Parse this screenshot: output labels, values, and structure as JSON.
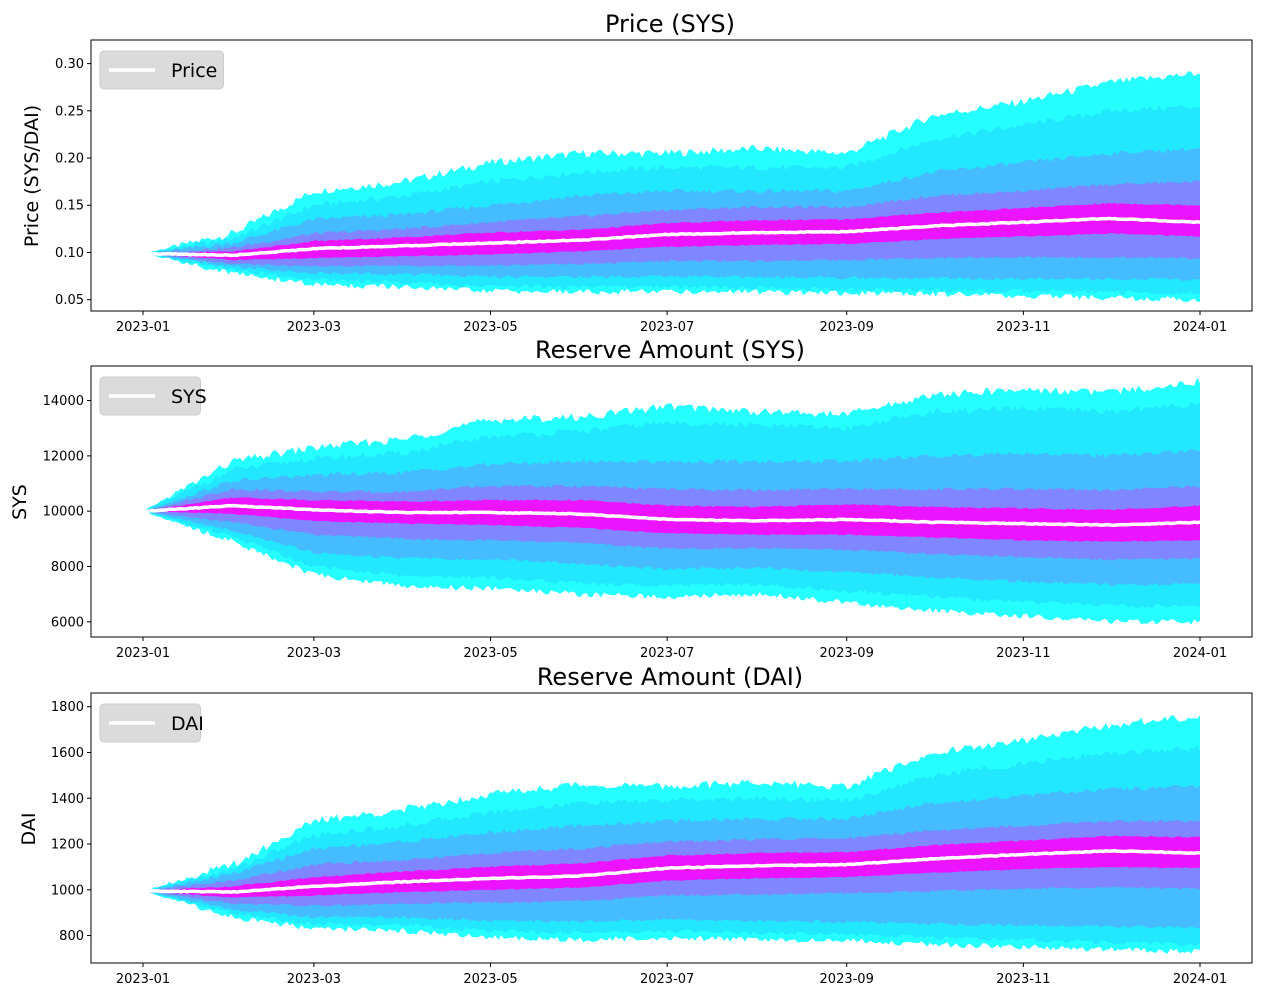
{
  "chart_data": [
    {
      "type": "area",
      "title": "Price (SYS)",
      "ylabel": "Price (SYS/DAI)",
      "xlabel": "",
      "ylim": [
        0.038,
        0.325
      ],
      "yticks": [
        0.05,
        0.1,
        0.15,
        0.2,
        0.25,
        0.3
      ],
      "ytick_labels": [
        "0.05",
        "0.10",
        "0.15",
        "0.20",
        "0.25",
        "0.30"
      ],
      "x_dates": [
        "2023-01-01",
        "2023-02-01",
        "2023-03-01",
        "2023-04-01",
        "2023-05-01",
        "2023-06-01",
        "2023-07-01",
        "2023-08-01",
        "2023-09-01",
        "2023-10-01",
        "2023-11-01",
        "2023-12-01",
        "2024-01-01"
      ],
      "legend": {
        "label": "Price",
        "location": "upper left"
      },
      "median": [
        0.099,
        0.097,
        0.104,
        0.107,
        0.11,
        0.113,
        0.119,
        0.121,
        0.122,
        0.128,
        0.132,
        0.136,
        0.132
      ],
      "bands": [
        {
          "lower": [
            0.099,
            0.078,
            0.066,
            0.063,
            0.059,
            0.058,
            0.059,
            0.058,
            0.057,
            0.056,
            0.054,
            0.052,
            0.05
          ],
          "upper": [
            0.099,
            0.12,
            0.165,
            0.175,
            0.195,
            0.205,
            0.205,
            0.21,
            0.205,
            0.245,
            0.26,
            0.28,
            0.29
          ]
        },
        {
          "lower": [
            0.099,
            0.081,
            0.071,
            0.068,
            0.064,
            0.063,
            0.064,
            0.062,
            0.061,
            0.06,
            0.059,
            0.058,
            0.056
          ],
          "upper": [
            0.099,
            0.115,
            0.15,
            0.16,
            0.175,
            0.185,
            0.19,
            0.19,
            0.19,
            0.22,
            0.235,
            0.25,
            0.255
          ]
        },
        {
          "lower": [
            0.099,
            0.085,
            0.078,
            0.077,
            0.074,
            0.074,
            0.075,
            0.074,
            0.073,
            0.073,
            0.072,
            0.072,
            0.071
          ],
          "upper": [
            0.099,
            0.11,
            0.135,
            0.14,
            0.15,
            0.16,
            0.165,
            0.165,
            0.165,
            0.185,
            0.195,
            0.205,
            0.21
          ]
        },
        {
          "lower": [
            0.099,
            0.088,
            0.085,
            0.086,
            0.086,
            0.088,
            0.091,
            0.091,
            0.092,
            0.094,
            0.095,
            0.095,
            0.094
          ],
          "upper": [
            0.099,
            0.105,
            0.12,
            0.125,
            0.132,
            0.138,
            0.145,
            0.148,
            0.148,
            0.16,
            0.165,
            0.172,
            0.175
          ]
        },
        {
          "lower": [
            0.099,
            0.092,
            0.094,
            0.096,
            0.098,
            0.101,
            0.106,
            0.108,
            0.109,
            0.114,
            0.117,
            0.12,
            0.117
          ],
          "upper": [
            0.099,
            0.101,
            0.112,
            0.116,
            0.121,
            0.124,
            0.131,
            0.134,
            0.135,
            0.142,
            0.147,
            0.152,
            0.15
          ]
        }
      ]
    },
    {
      "type": "area",
      "title": "Reserve Amount (SYS)",
      "ylabel": "SYS",
      "xlabel": "",
      "ylim": [
        5450,
        15250
      ],
      "yticks": [
        6000,
        8000,
        10000,
        12000,
        14000
      ],
      "ytick_labels": [
        "6000",
        "8000",
        "10000",
        "12000",
        "14000"
      ],
      "x_dates": [
        "2023-01-01",
        "2023-02-01",
        "2023-03-01",
        "2023-04-01",
        "2023-05-01",
        "2023-06-01",
        "2023-07-01",
        "2023-08-01",
        "2023-09-01",
        "2023-10-01",
        "2023-11-01",
        "2023-12-01",
        "2024-01-01"
      ],
      "legend": {
        "label": "SYS",
        "location": "upper left"
      },
      "median": [
        10000,
        10200,
        10050,
        9950,
        9950,
        9900,
        9700,
        9650,
        9700,
        9600,
        9550,
        9500,
        9600
      ],
      "bands": [
        {
          "lower": [
            10000,
            8900,
            7700,
            7300,
            7200,
            7000,
            6900,
            7000,
            6700,
            6400,
            6200,
            6000,
            6000
          ],
          "upper": [
            10000,
            11800,
            12300,
            12600,
            13300,
            13400,
            13800,
            13600,
            13500,
            14200,
            14400,
            14300,
            14700
          ]
        },
        {
          "lower": [
            10000,
            9050,
            8000,
            7650,
            7600,
            7400,
            7300,
            7350,
            7100,
            6900,
            6700,
            6600,
            6550
          ],
          "upper": [
            10000,
            11500,
            11900,
            12100,
            12700,
            12900,
            13200,
            13100,
            13000,
            13600,
            13700,
            13600,
            13900
          ]
        },
        {
          "lower": [
            10000,
            9300,
            8500,
            8300,
            8250,
            8100,
            7900,
            7950,
            7800,
            7600,
            7450,
            7350,
            7350
          ],
          "upper": [
            10000,
            11100,
            11300,
            11400,
            11700,
            11800,
            11800,
            11800,
            11800,
            12000,
            12100,
            12000,
            12200
          ]
        },
        {
          "lower": [
            10000,
            9600,
            9150,
            9000,
            8950,
            8850,
            8650,
            8650,
            8600,
            8450,
            8350,
            8250,
            8300
          ],
          "upper": [
            10000,
            10800,
            10700,
            10700,
            10900,
            10900,
            10800,
            10750,
            10800,
            10800,
            10800,
            10750,
            10900
          ]
        },
        {
          "lower": [
            10000,
            9900,
            9650,
            9550,
            9500,
            9400,
            9200,
            9150,
            9150,
            9050,
            8950,
            8900,
            8950
          ],
          "upper": [
            10000,
            10500,
            10400,
            10350,
            10400,
            10400,
            10200,
            10150,
            10250,
            10150,
            10100,
            10050,
            10200
          ]
        }
      ]
    },
    {
      "type": "area",
      "title": "Reserve Amount (DAI)",
      "ylabel": "DAI",
      "xlabel": "",
      "ylim": [
        680,
        1860
      ],
      "yticks": [
        800,
        1000,
        1200,
        1400,
        1600,
        1800
      ],
      "ytick_labels": [
        "800",
        "1000",
        "1200",
        "1400",
        "1600",
        "1800"
      ],
      "x_dates": [
        "2023-01-01",
        "2023-02-01",
        "2023-03-01",
        "2023-04-01",
        "2023-05-01",
        "2023-06-01",
        "2023-07-01",
        "2023-08-01",
        "2023-09-01",
        "2023-10-01",
        "2023-11-01",
        "2023-12-01",
        "2024-01-01"
      ],
      "legend": {
        "label": "DAI",
        "location": "upper left"
      },
      "median": [
        995,
        990,
        1015,
        1035,
        1050,
        1060,
        1095,
        1105,
        1110,
        1135,
        1155,
        1170,
        1160
      ],
      "bands": [
        {
          "lower": [
            995,
            880,
            830,
            820,
            790,
            780,
            790,
            780,
            780,
            760,
            750,
            740,
            730
          ],
          "upper": [
            995,
            1110,
            1300,
            1350,
            1420,
            1460,
            1450,
            1470,
            1450,
            1600,
            1650,
            1720,
            1760
          ]
        },
        {
          "lower": [
            995,
            895,
            850,
            845,
            820,
            810,
            820,
            810,
            805,
            790,
            780,
            770,
            760
          ],
          "upper": [
            995,
            1090,
            1240,
            1280,
            1340,
            1380,
            1390,
            1400,
            1390,
            1500,
            1550,
            1600,
            1620
          ]
        },
        {
          "lower": [
            995,
            915,
            880,
            880,
            865,
            860,
            870,
            865,
            860,
            850,
            845,
            840,
            835
          ],
          "upper": [
            995,
            1070,
            1180,
            1210,
            1250,
            1280,
            1300,
            1310,
            1310,
            1380,
            1410,
            1440,
            1450
          ]
        },
        {
          "lower": [
            995,
            940,
            930,
            940,
            945,
            950,
            975,
            980,
            985,
            995,
            1005,
            1010,
            1005
          ],
          "upper": [
            995,
            1040,
            1110,
            1130,
            1160,
            1180,
            1210,
            1220,
            1225,
            1260,
            1280,
            1300,
            1300
          ]
        },
        {
          "lower": [
            995,
            965,
            975,
            990,
            1000,
            1010,
            1040,
            1050,
            1055,
            1075,
            1090,
            1100,
            1095
          ],
          "upper": [
            995,
            1015,
            1055,
            1080,
            1100,
            1115,
            1150,
            1160,
            1165,
            1195,
            1215,
            1235,
            1230
          ]
        }
      ]
    }
  ],
  "x_tick_labels": [
    "2023-01",
    "2023-03",
    "2023-05",
    "2023-07",
    "2023-09",
    "2023-11",
    "2024-01"
  ],
  "colors": {
    "outer_band": "#00ffff",
    "mid_band": "#66a0ff",
    "inner_band": "#ff00ff",
    "median_line": "#ffffff",
    "legend_bg": "#d9d9d9"
  }
}
